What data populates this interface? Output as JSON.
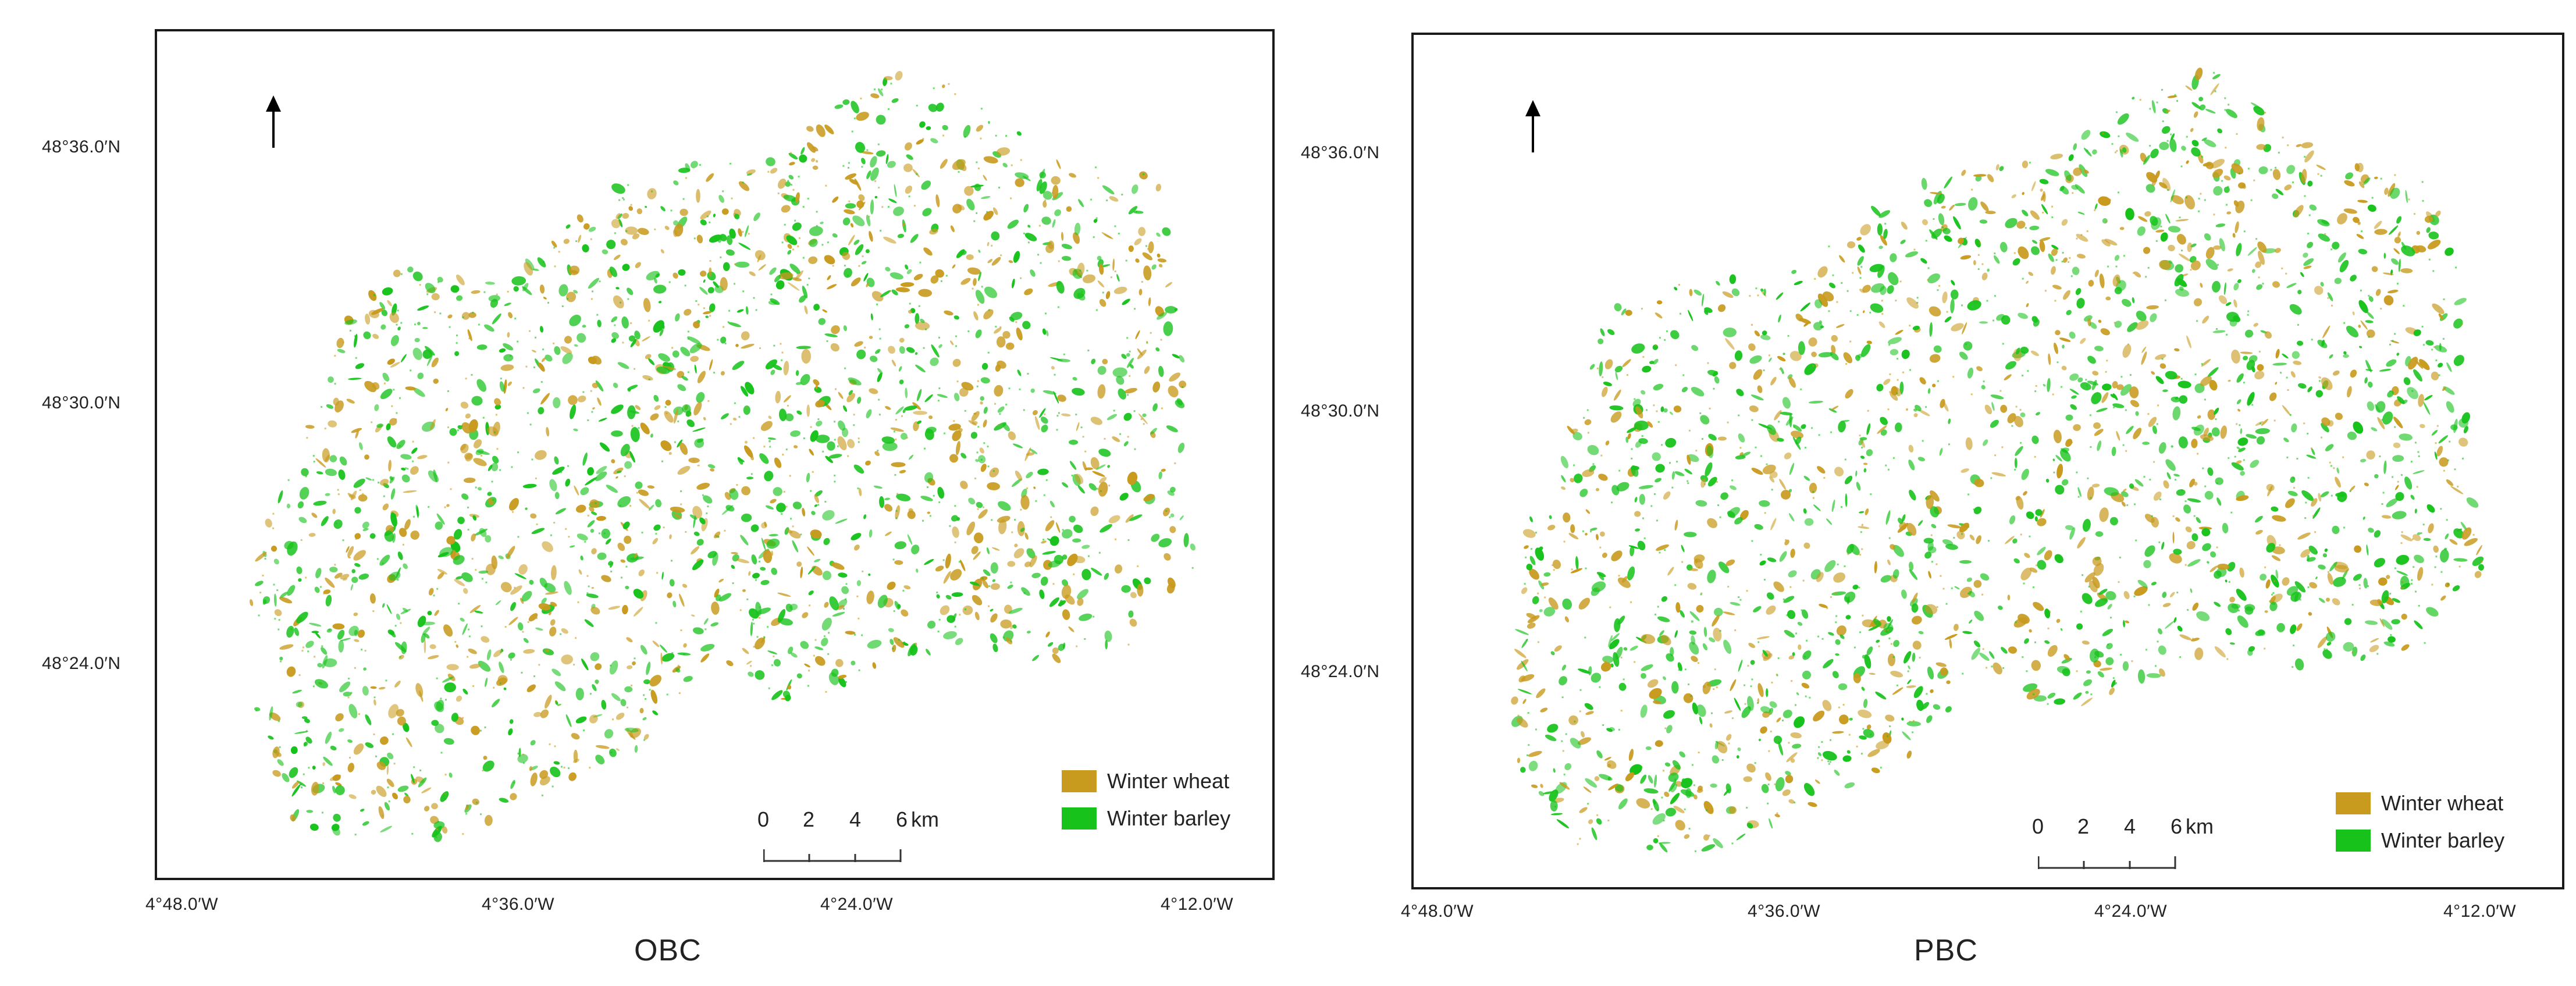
{
  "colors": {
    "winter_wheat": "#c89a1e",
    "winter_barley": "#17c21b",
    "frame": "#1a1a1a",
    "background": "#ffffff"
  },
  "map_common": {
    "north_arrow_icon": "north-arrow-icon",
    "lat_labels": [
      "48°36.0′N",
      "48°30.0′N",
      "48°24.0′N"
    ],
    "lon_labels": [
      "4°48.0′W",
      "4°36.0′W",
      "4°24.0′W",
      "4°12.0′W"
    ],
    "legend": [
      {
        "label": "Winter wheat",
        "color": "#c89a1e"
      },
      {
        "label": "Winter barley",
        "color": "#17c21b"
      }
    ],
    "scale_bar": {
      "ticks": [
        "0",
        "2",
        "4",
        "6"
      ],
      "unit": "km"
    }
  },
  "panels": [
    {
      "id": "obc",
      "caption": "OBC"
    },
    {
      "id": "pbc",
      "caption": "PBC"
    }
  ],
  "chart_data": {
    "type": "map",
    "panels": [
      "OBC",
      "PBC"
    ],
    "classes": [
      "Winter wheat",
      "Winter barley"
    ],
    "latitude_ticks_N": [
      "48°36.0′N",
      "48°30.0′N",
      "48°24.0′N"
    ],
    "longitude_ticks_W": [
      "4°48.0′W",
      "4°36.0′W",
      "4°24.0′W",
      "4°12.0′W"
    ],
    "scale_km": [
      0,
      2,
      4,
      6
    ]
  }
}
